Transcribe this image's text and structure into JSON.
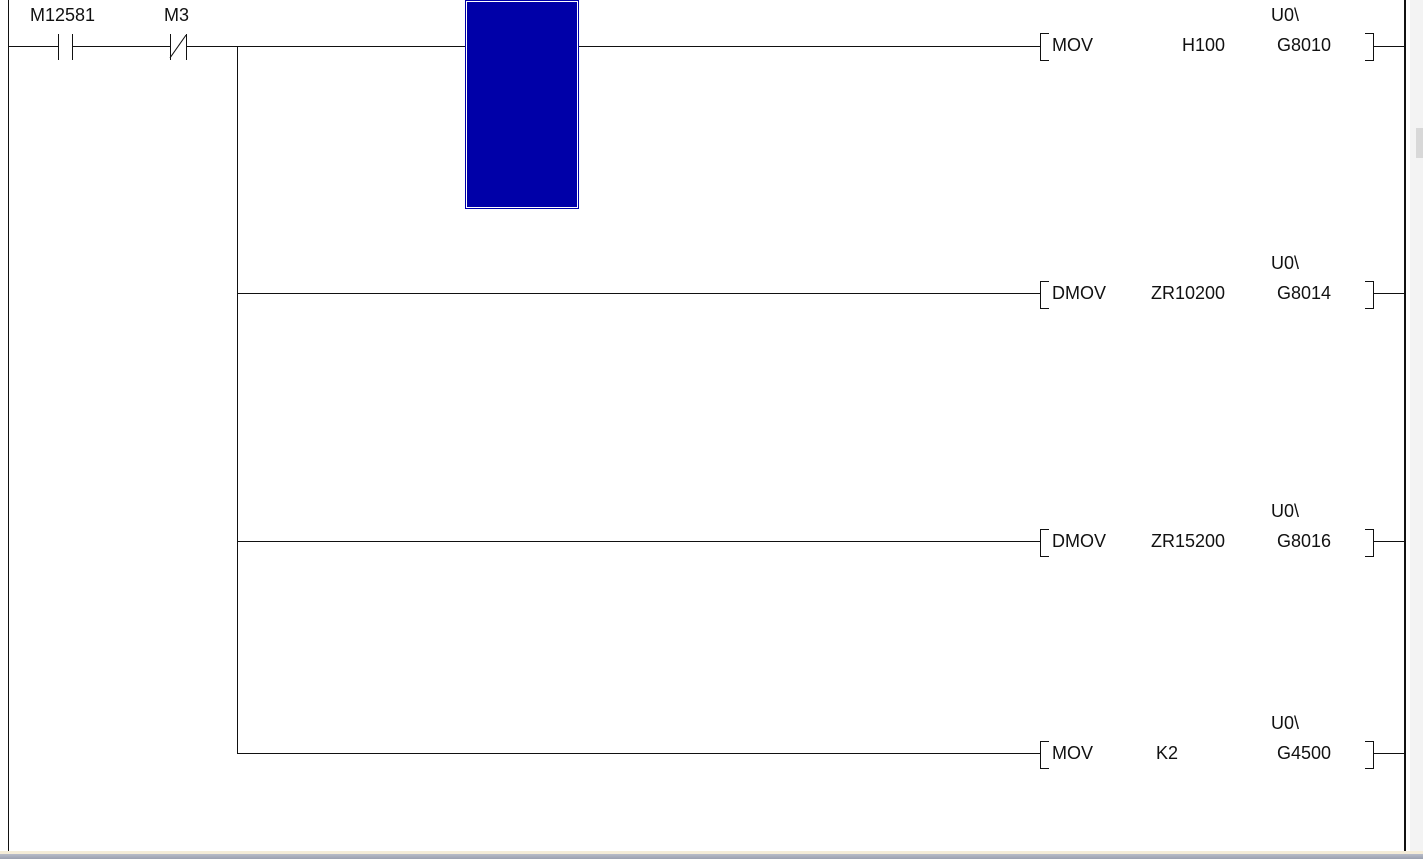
{
  "ladder": {
    "contacts": [
      {
        "device": "M12581",
        "type": "normally-open"
      },
      {
        "device": "M3",
        "type": "normally-closed"
      }
    ],
    "instructions": [
      {
        "mnemonic": "MOV",
        "source": "H100",
        "dest_prefix": "U0\\",
        "dest": "G8010"
      },
      {
        "mnemonic": "DMOV",
        "source": "ZR10200",
        "dest_prefix": "U0\\",
        "dest": "G8014"
      },
      {
        "mnemonic": "DMOV",
        "source": "ZR15200",
        "dest_prefix": "U0\\",
        "dest": "G8016"
      },
      {
        "mnemonic": "MOV",
        "source": "K2",
        "dest_prefix": "U0\\",
        "dest": "G4500"
      }
    ]
  },
  "colors": {
    "cursor": "#0000a8",
    "lines": "#111111"
  }
}
